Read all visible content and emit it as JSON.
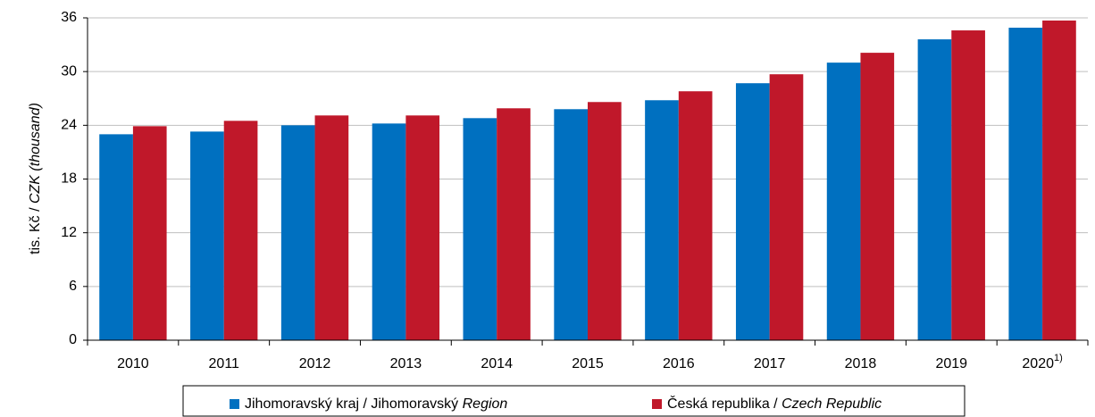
{
  "chart_data": {
    "type": "bar",
    "ylabel": "tis. Kč /",
    "ylabel_italic": "CZK (thousand)",
    "categories": [
      "2010",
      "2011",
      "2012",
      "2013",
      "2014",
      "2015",
      "2016",
      "2017",
      "2018",
      "2019",
      "2020"
    ],
    "category_superscripts": [
      null,
      null,
      null,
      null,
      null,
      null,
      null,
      null,
      null,
      null,
      "1)"
    ],
    "series": [
      {
        "name": "Jihomoravský kraj / Jihomoravský",
        "name_italic": "Region",
        "color": "#0070c0",
        "values": [
          23.0,
          23.3,
          24.0,
          24.2,
          24.8,
          25.8,
          26.8,
          28.7,
          31.0,
          33.6,
          34.9
        ]
      },
      {
        "name": "Česká republika /",
        "name_italic": "Czech Republic",
        "color": "#c0182a",
        "values": [
          23.9,
          24.5,
          25.1,
          25.1,
          25.9,
          26.6,
          27.8,
          29.7,
          32.1,
          34.6,
          35.7
        ]
      }
    ],
    "ylim": [
      0,
      36
    ],
    "yticks": [
      0,
      6,
      12,
      18,
      24,
      30,
      36
    ],
    "grid": true,
    "legend": "bottom"
  }
}
